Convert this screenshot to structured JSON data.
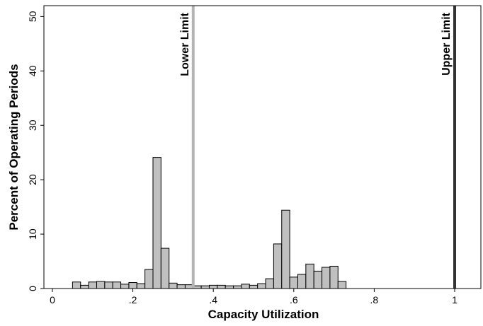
{
  "chart_data": {
    "type": "bar",
    "xlabel": "Capacity Utilization",
    "ylabel": "Percent of Operating Periods",
    "xlim": [
      -0.035,
      1.08
    ],
    "ylim": [
      0,
      52
    ],
    "x_ticks": [
      {
        "value": 0,
        "label": "0"
      },
      {
        "value": 0.2,
        "label": ".2"
      },
      {
        "value": 0.4,
        "label": ".4"
      },
      {
        "value": 0.6,
        "label": ".6"
      },
      {
        "value": 0.8,
        "label": ".8"
      },
      {
        "value": 1.0,
        "label": "1"
      }
    ],
    "y_ticks": [
      {
        "value": 0,
        "label": "0"
      },
      {
        "value": 10,
        "label": "10"
      },
      {
        "value": 20,
        "label": "20"
      },
      {
        "value": 30,
        "label": "30"
      },
      {
        "value": 40,
        "label": "40"
      },
      {
        "value": 50,
        "label": "50"
      }
    ],
    "grid": false,
    "bar_color": "#c0c0c0",
    "bar_edge_color": "#000000",
    "bins": [
      {
        "start": 0.05,
        "end": 0.07,
        "value": 1.2
      },
      {
        "start": 0.07,
        "end": 0.09,
        "value": 0.6
      },
      {
        "start": 0.09,
        "end": 0.11,
        "value": 1.2
      },
      {
        "start": 0.11,
        "end": 0.13,
        "value": 1.3
      },
      {
        "start": 0.13,
        "end": 0.15,
        "value": 1.2
      },
      {
        "start": 0.15,
        "end": 0.17,
        "value": 1.2
      },
      {
        "start": 0.17,
        "end": 0.19,
        "value": 0.8
      },
      {
        "start": 0.19,
        "end": 0.21,
        "value": 1.1
      },
      {
        "start": 0.21,
        "end": 0.23,
        "value": 0.9
      },
      {
        "start": 0.23,
        "end": 0.25,
        "value": 3.5
      },
      {
        "start": 0.25,
        "end": 0.27,
        "value": 24.1
      },
      {
        "start": 0.27,
        "end": 0.29,
        "value": 7.4
      },
      {
        "start": 0.29,
        "end": 0.31,
        "value": 1.0
      },
      {
        "start": 0.31,
        "end": 0.33,
        "value": 0.7
      },
      {
        "start": 0.33,
        "end": 0.35,
        "value": 0.7
      },
      {
        "start": 0.35,
        "end": 0.37,
        "value": 0.5
      },
      {
        "start": 0.37,
        "end": 0.39,
        "value": 0.5
      },
      {
        "start": 0.39,
        "end": 0.41,
        "value": 0.6
      },
      {
        "start": 0.41,
        "end": 0.43,
        "value": 0.6
      },
      {
        "start": 0.43,
        "end": 0.45,
        "value": 0.5
      },
      {
        "start": 0.45,
        "end": 0.47,
        "value": 0.5
      },
      {
        "start": 0.47,
        "end": 0.49,
        "value": 0.8
      },
      {
        "start": 0.49,
        "end": 0.51,
        "value": 0.6
      },
      {
        "start": 0.51,
        "end": 0.53,
        "value": 0.9
      },
      {
        "start": 0.53,
        "end": 0.55,
        "value": 1.8
      },
      {
        "start": 0.55,
        "end": 0.57,
        "value": 8.2
      },
      {
        "start": 0.57,
        "end": 0.59,
        "value": 14.4
      },
      {
        "start": 0.59,
        "end": 0.61,
        "value": 2.1
      },
      {
        "start": 0.61,
        "end": 0.63,
        "value": 2.6
      },
      {
        "start": 0.63,
        "end": 0.65,
        "value": 4.5
      },
      {
        "start": 0.65,
        "end": 0.67,
        "value": 3.2
      },
      {
        "start": 0.67,
        "end": 0.69,
        "value": 3.9
      },
      {
        "start": 0.69,
        "end": 0.71,
        "value": 4.1
      },
      {
        "start": 0.71,
        "end": 0.73,
        "value": 1.3
      }
    ],
    "reference_lines": [
      {
        "x": 0.35,
        "label": "Lower Limit",
        "color": "#b4b4b4"
      },
      {
        "x": 1.0,
        "label": "Upper Limit",
        "color": "#333333"
      }
    ]
  }
}
